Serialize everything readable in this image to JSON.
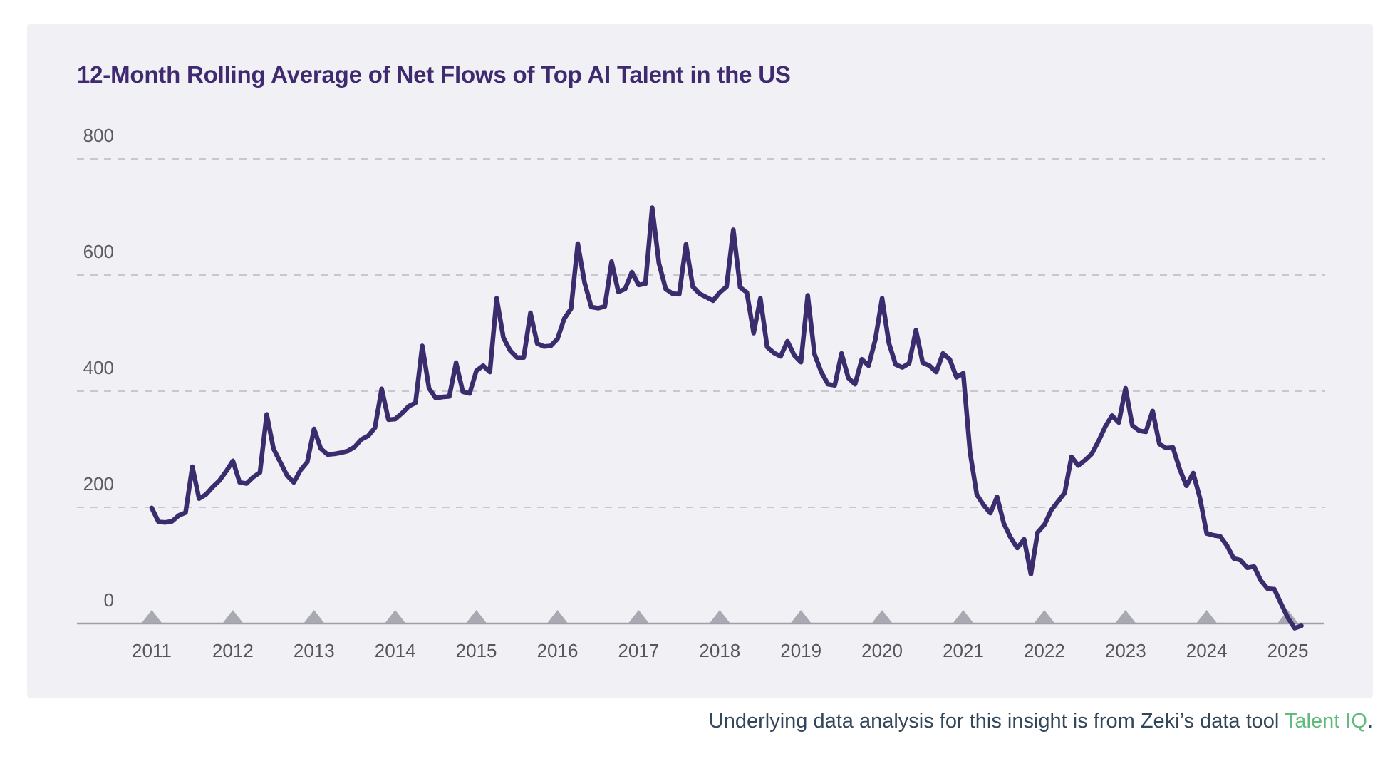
{
  "chart": {
    "title": "12-Month Rolling Average of Net Flows of Top AI Talent in the US",
    "title_color": "#3f2a70",
    "line_color": "#3b2c6e",
    "card_background": "#f1f0f4",
    "grid_color": "#c7c7cf",
    "axis_color": "#9fa0a7",
    "tick_marker_color": "#a9a9b1",
    "tick_label_color": "#55555d"
  },
  "chart_data": {
    "type": "line",
    "title": "12-Month Rolling Average of Net Flows of Top AI Talent in the US",
    "xlabel": "",
    "ylabel": "",
    "frequency": "monthly",
    "start": "2011-01",
    "end": "2025-03",
    "x_year_ticks": [
      2011,
      2012,
      2013,
      2014,
      2015,
      2016,
      2017,
      2018,
      2019,
      2020,
      2021,
      2022,
      2023,
      2024,
      2025
    ],
    "yticks": [
      0,
      200,
      400,
      600,
      800
    ],
    "ylim": [
      -30,
      860
    ],
    "grid": "horizontal-dashed",
    "legend": "none",
    "series": [
      {
        "name": "Net flows of top AI talent (12-month rolling average)",
        "monthly_values": [
          199,
          175,
          174,
          176,
          186,
          191,
          270,
          215,
          222,
          235,
          246,
          262,
          280,
          243,
          241,
          252,
          260,
          360,
          301,
          278,
          255,
          243,
          264,
          278,
          335,
          301,
          291,
          292,
          294,
          297,
          304,
          317,
          323,
          337,
          404,
          351,
          352,
          362,
          374,
          380,
          478,
          405,
          388,
          390,
          391,
          449,
          399,
          396,
          435,
          444,
          433,
          560,
          492,
          470,
          458,
          458,
          535,
          482,
          477,
          478,
          490,
          525,
          542,
          654,
          587,
          545,
          543,
          546,
          623,
          571,
          576,
          605,
          583,
          585,
          716,
          620,
          576,
          568,
          567,
          653,
          580,
          568,
          562,
          556,
          570,
          580,
          678,
          579,
          570,
          500,
          560,
          476,
          466,
          460,
          486,
          462,
          450,
          565,
          464,
          433,
          412,
          410,
          465,
          423,
          412,
          455,
          444,
          489,
          560,
          483,
          446,
          441,
          448,
          505,
          449,
          444,
          433,
          465,
          455,
          424,
          431,
          295,
          222,
          204,
          190,
          218,
          172,
          148,
          130,
          145,
          85,
          157,
          170,
          195,
          210,
          225,
          287,
          272,
          281,
          292,
          314,
          339,
          358,
          346,
          405,
          341,
          332,
          330,
          366,
          309,
          302,
          303,
          266,
          237,
          259,
          216,
          155,
          152,
          150,
          134,
          112,
          109,
          96,
          98,
          74,
          60,
          59,
          34,
          10,
          -8,
          -4
        ]
      }
    ]
  },
  "footer": {
    "text_before": "Underlying data analysis for this insight is from Zeki’s data tool ",
    "link_text": "Talent IQ",
    "suffix": ".",
    "link_color": "#62bb7d",
    "text_color": "#33475a"
  }
}
